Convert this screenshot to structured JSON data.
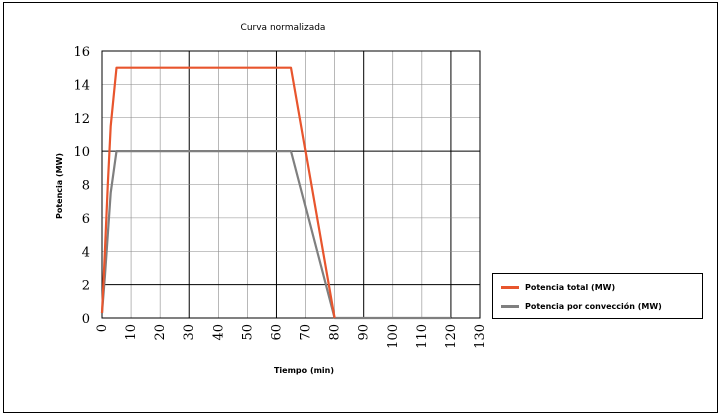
{
  "chart_data": {
    "type": "line",
    "title": "Curva normalizada",
    "xlabel": "Tiempo (min)",
    "ylabel": "Potencia (MW)",
    "xlim": [
      0,
      130
    ],
    "ylim": [
      0,
      16
    ],
    "xticks": [
      "0",
      "10",
      "20",
      "30",
      "40",
      "50",
      "60",
      "70",
      "80",
      "90",
      "100",
      "110",
      "120",
      "130"
    ],
    "yticks": [
      "0",
      "2",
      "4",
      "6",
      "8",
      "10",
      "12",
      "14",
      "16"
    ],
    "grid": true,
    "legend_position": "right",
    "series": [
      {
        "name": "Potencia total (MW)",
        "color": "#e8552d",
        "points": [
          [
            0,
            0.3
          ],
          [
            1,
            4
          ],
          [
            2,
            8
          ],
          [
            3,
            11.5
          ],
          [
            5,
            15
          ],
          [
            65,
            15
          ],
          [
            80,
            0
          ]
        ]
      },
      {
        "name": "Potencia por convección (MW)",
        "color": "#7f7f7f",
        "points": [
          [
            0,
            0.3
          ],
          [
            1,
            2.5
          ],
          [
            2,
            5
          ],
          [
            3,
            7.5
          ],
          [
            5,
            10
          ],
          [
            65,
            10
          ],
          [
            80,
            0
          ],
          [
            120,
            0
          ]
        ]
      }
    ]
  }
}
